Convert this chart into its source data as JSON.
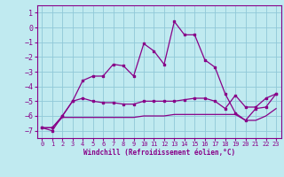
{
  "xlabel": "Windchill (Refroidissement éolien,°C)",
  "xlim": [
    -0.5,
    23.5
  ],
  "ylim": [
    -7.5,
    1.5
  ],
  "yticks": [
    1,
    0,
    -1,
    -2,
    -3,
    -4,
    -5,
    -6,
    -7
  ],
  "xticks": [
    0,
    1,
    2,
    3,
    4,
    5,
    6,
    7,
    8,
    9,
    10,
    11,
    12,
    13,
    14,
    15,
    16,
    17,
    18,
    19,
    20,
    21,
    22,
    23
  ],
  "bg_color": "#c0eaf0",
  "grid_color": "#90c8d8",
  "line_color": "#880088",
  "line1_x": [
    0,
    1,
    2,
    3,
    4,
    5,
    6,
    7,
    8,
    9,
    10,
    11,
    12,
    13,
    14,
    15,
    16,
    17,
    18,
    19,
    20,
    21,
    22,
    23
  ],
  "line1_y": [
    -6.8,
    -7.0,
    -6.0,
    -5.0,
    -3.6,
    -3.3,
    -3.3,
    -2.5,
    -2.6,
    -3.3,
    -1.1,
    -1.6,
    -2.5,
    0.4,
    -0.5,
    -0.5,
    -2.2,
    -2.7,
    -4.5,
    -5.8,
    -6.3,
    -5.5,
    -5.4,
    -4.5
  ],
  "line2_x": [
    0,
    1,
    2,
    3,
    4,
    5,
    6,
    7,
    8,
    9,
    10,
    11,
    12,
    13,
    14,
    15,
    16,
    17,
    18,
    19,
    20,
    21,
    22,
    23
  ],
  "line2_y": [
    -6.8,
    -6.8,
    -6.0,
    -5.0,
    -4.8,
    -5.0,
    -5.1,
    -5.1,
    -5.2,
    -5.2,
    -5.0,
    -5.0,
    -5.0,
    -5.0,
    -4.9,
    -4.8,
    -4.8,
    -5.0,
    -5.5,
    -4.6,
    -5.4,
    -5.4,
    -4.8,
    -4.5
  ],
  "line3_x": [
    0,
    1,
    2,
    3,
    4,
    5,
    6,
    7,
    8,
    9,
    10,
    11,
    12,
    13,
    14,
    15,
    16,
    17,
    18,
    19,
    20,
    21,
    22,
    23
  ],
  "line3_y": [
    -6.8,
    -6.8,
    -6.1,
    -6.1,
    -6.1,
    -6.1,
    -6.1,
    -6.1,
    -6.1,
    -6.1,
    -6.0,
    -6.0,
    -6.0,
    -5.9,
    -5.9,
    -5.9,
    -5.9,
    -5.9,
    -5.9,
    -5.9,
    -6.3,
    -6.3,
    -6.0,
    -5.5
  ]
}
